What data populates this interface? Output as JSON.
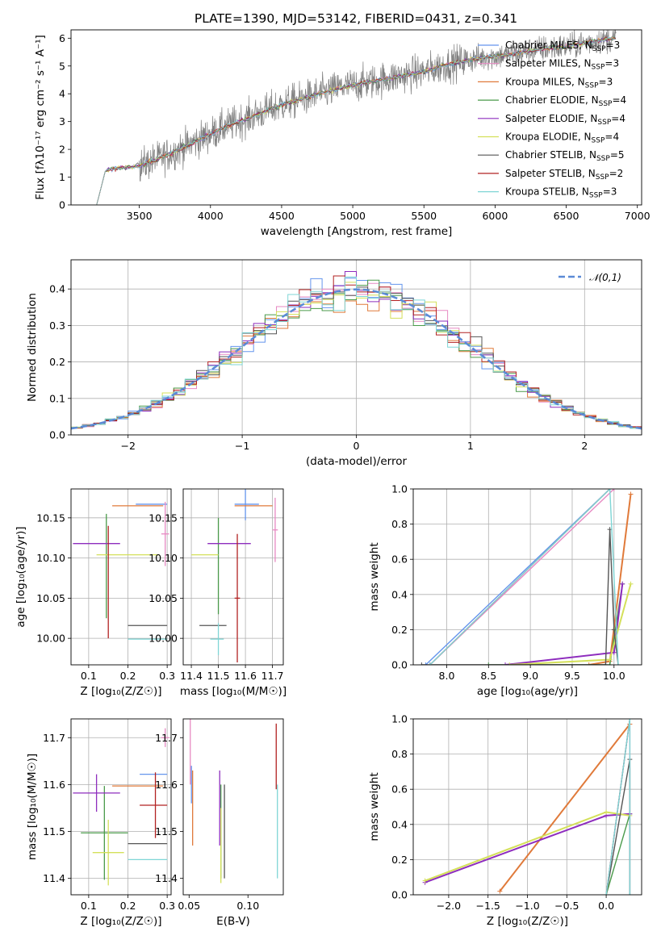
{
  "figure": {
    "title": "PLATE=1390, MJD=53142, FIBERID=0431, z=0.341",
    "series_colors": [
      "#6495ED",
      "#E78AC3",
      "#E07A3A",
      "#4A9A4A",
      "#8E2DBE",
      "#D4E05A",
      "#555555",
      "#B22222",
      "#7FD6D6"
    ]
  },
  "legend_top": [
    {
      "prefix": "Chabrier MILES, N",
      "sub": "SSP",
      "suffix": "=3"
    },
    {
      "prefix": "Salpeter MILES, N",
      "sub": "SSP",
      "suffix": "=3"
    },
    {
      "prefix": "Kroupa MILES, N",
      "sub": "SSP",
      "suffix": "=3"
    },
    {
      "prefix": "Chabrier ELODIE, N",
      "sub": "SSP",
      "suffix": "=4"
    },
    {
      "prefix": "Salpeter ELODIE, N",
      "sub": "SSP",
      "suffix": "=4"
    },
    {
      "prefix": "Kroupa ELODIE, N",
      "sub": "SSP",
      "suffix": "=4"
    },
    {
      "prefix": "Chabrier STELIB, N",
      "sub": "SSP",
      "suffix": "=5"
    },
    {
      "prefix": "Salpeter STELIB, N",
      "sub": "SSP",
      "suffix": "=2"
    },
    {
      "prefix": "Kroupa STELIB, N",
      "sub": "SSP",
      "suffix": "=3"
    }
  ],
  "legend_hist": {
    "label": "𝒩(0,1)"
  },
  "chart_data": [
    {
      "id": "spectrum",
      "type": "line",
      "title": "PLATE=1390, MJD=53142, FIBERID=0431, z=0.341",
      "xlabel": "wavelength [Angstrom, rest frame]",
      "ylabel": "Flux [fλ10⁻¹⁷ erg cm⁻² s⁻¹ A⁻¹]",
      "xlim": [
        3020,
        7030
      ],
      "ylim": [
        0,
        6.3
      ],
      "xticks": [
        3500,
        4000,
        4500,
        5000,
        5500,
        6000,
        6500,
        7000
      ],
      "yticks": [
        0,
        1,
        2,
        3,
        4,
        5,
        6
      ],
      "continuum_x": [
        3200,
        3260,
        3300,
        3500,
        3700,
        3900,
        4100,
        4300,
        4500,
        4700,
        4900,
        5100,
        5300,
        5500,
        5700,
        5900,
        6100,
        6300,
        6500,
        6700,
        6850
      ],
      "continuum_y": [
        0,
        1.2,
        1.3,
        1.4,
        1.8,
        2.3,
        2.8,
        3.2,
        3.6,
        3.9,
        4.2,
        4.4,
        4.6,
        4.8,
        5.1,
        5.3,
        5.4,
        5.6,
        5.7,
        5.9,
        6.0
      ],
      "legend_position": "upper right"
    },
    {
      "id": "residual-hist",
      "type": "line",
      "xlabel": "(data-model)/error",
      "ylabel": "Normed distribution",
      "xlim": [
        -2.5,
        2.5
      ],
      "ylim": [
        0,
        0.48
      ],
      "xticks": [
        -2,
        -1,
        0,
        1,
        2
      ],
      "yticks": [
        0.0,
        0.1,
        0.2,
        0.3,
        0.4
      ],
      "bin_width": 0.1,
      "reference_curve": "standard normal, dashed",
      "grid": true,
      "legend_position": "upper right"
    },
    {
      "id": "age-vs-Z",
      "type": "scatter",
      "xlabel": "Z [log₁₀(Z/Z☉)]",
      "ylabel": "age  [log₁₀(age/yr)]",
      "xlim": [
        0.055,
        0.31
      ],
      "ylim": [
        9.967,
        10.186
      ],
      "xticks": [
        0.1,
        0.2,
        0.3
      ],
      "yticks": [
        10.0,
        10.05,
        10.1,
        10.15
      ],
      "grid": true,
      "points": [
        {
          "x": 0.27,
          "xerr": [
            0.05,
            0.03
          ],
          "y": 10.167,
          "yerr": [
            0,
            0
          ]
        },
        {
          "x": 0.295,
          "xerr": [
            0.01,
            0.01
          ],
          "y": 10.13,
          "yerr": [
            0.04,
            0.04
          ]
        },
        {
          "x": 0.25,
          "xerr": [
            0.09,
            0.04
          ],
          "y": 10.165,
          "yerr": [
            0,
            0
          ]
        },
        {
          "x": 0.145,
          "xerr": [
            0,
            0
          ],
          "y": 10.09,
          "yerr": [
            0.065,
            0.065
          ]
        },
        {
          "x": 0.12,
          "xerr": [
            0.06,
            0.06
          ],
          "y": 10.118,
          "yerr": [
            0,
            0
          ]
        },
        {
          "x": 0.2,
          "xerr": [
            0.08,
            0.08
          ],
          "y": 10.104,
          "yerr": [
            0,
            0
          ]
        },
        {
          "x": 0.25,
          "xerr": [
            0.05,
            0.05
          ],
          "y": 10.016,
          "yerr": [
            0,
            0
          ]
        },
        {
          "x": 0.15,
          "xerr": [
            0,
            0
          ],
          "y": 10.07,
          "yerr": [
            0.07,
            0.07
          ]
        },
        {
          "x": 0.25,
          "xerr": [
            0.05,
            0.05
          ],
          "y": 9.999,
          "yerr": [
            0,
            0
          ]
        }
      ]
    },
    {
      "id": "age-vs-mass",
      "type": "scatter",
      "xlabel": "mass [log₁₀(M/M☉)]",
      "ylabel": "",
      "xlim": [
        11.37,
        11.74
      ],
      "ylim": [
        9.967,
        10.186
      ],
      "xticks": [
        11.4,
        11.5,
        11.6,
        11.7
      ],
      "yticks": [
        10.0,
        10.05,
        10.1,
        10.15
      ],
      "grid": true,
      "points": [
        {
          "x": 11.6,
          "xerr": [
            0.04,
            0.05
          ],
          "y": 10.167,
          "yerr": [
            0.02,
            0.02
          ]
        },
        {
          "x": 11.71,
          "xerr": [
            0.01,
            0.01
          ],
          "y": 10.135,
          "yerr": [
            0.04,
            0.04
          ]
        },
        {
          "x": 11.62,
          "xerr": [
            0.06,
            0.08
          ],
          "y": 10.165,
          "yerr": [
            0,
            0
          ]
        },
        {
          "x": 11.5,
          "xerr": [
            0,
            0
          ],
          "y": 10.09,
          "yerr": [
            0.06,
            0.06
          ]
        },
        {
          "x": 11.55,
          "xerr": [
            0.09,
            0.07
          ],
          "y": 10.118,
          "yerr": [
            0,
            0
          ]
        },
        {
          "x": 11.45,
          "xerr": [
            0.05,
            0.05
          ],
          "y": 10.104,
          "yerr": [
            0,
            0
          ]
        },
        {
          "x": 11.48,
          "xerr": [
            0.05,
            0.05
          ],
          "y": 10.016,
          "yerr": [
            0,
            0
          ]
        },
        {
          "x": 11.57,
          "xerr": [
            0.01,
            0.01
          ],
          "y": 10.05,
          "yerr": [
            0.08,
            0.08
          ]
        },
        {
          "x": 11.5,
          "xerr": [
            0.03,
            0.02
          ],
          "y": 9.999,
          "yerr": [
            0.02,
            0.02
          ]
        }
      ]
    },
    {
      "id": "weight-vs-age",
      "type": "line",
      "xlabel": "age  [log₁₀(age/yr)]",
      "ylabel": "mass weight",
      "xlim": [
        7.6,
        10.33
      ],
      "ylim": [
        0,
        1
      ],
      "xticks": [
        8.0,
        8.5,
        9.0,
        9.5,
        10.0
      ],
      "yticks": [
        0.0,
        0.2,
        0.4,
        0.6,
        0.8,
        1.0
      ],
      "grid": true,
      "series": [
        {
          "x": [
            7.75,
            9.95
          ],
          "y": [
            0.0,
            1.0
          ]
        },
        {
          "x": [
            7.8,
            10.0
          ],
          "y": [
            0.0,
            1.0
          ]
        },
        {
          "x": [
            9.7,
            9.95,
            10.2
          ],
          "y": [
            0.0,
            0.02,
            0.97
          ]
        },
        {
          "x": [
            8.5,
            9.95,
            10.1
          ],
          "y": [
            0.0,
            0.0,
            0.46
          ]
        },
        {
          "x": [
            8.7,
            10.0,
            10.1
          ],
          "y": [
            0.0,
            0.07,
            0.46
          ]
        },
        {
          "x": [
            8.75,
            9.95,
            10.2
          ],
          "y": [
            0.0,
            0.03,
            0.46
          ]
        },
        {
          "x": [
            7.7,
            9.9,
            9.95,
            10.0,
            10.05
          ],
          "y": [
            0.0,
            0.0,
            0.77,
            0.2,
            0.0
          ]
        },
        {
          "x": [
            7.8,
            9.95
          ],
          "y": [
            0.0,
            1.0
          ]
        },
        {
          "x": [
            7.8,
            9.95,
            10.05
          ],
          "y": [
            0.0,
            1.0,
            0.0
          ]
        }
      ]
    },
    {
      "id": "mass-vs-Z",
      "type": "scatter",
      "xlabel": "Z [log₁₀(Z/Z☉)]",
      "ylabel": "mass [log₁₀(M/M☉)]",
      "xlim": [
        0.055,
        0.31
      ],
      "ylim": [
        11.365,
        11.74
      ],
      "xticks": [
        0.1,
        0.2,
        0.3
      ],
      "yticks": [
        11.4,
        11.5,
        11.6,
        11.7
      ],
      "grid": true,
      "points": [
        {
          "x": 0.27,
          "xerr": [
            0.04,
            0.03
          ],
          "y": 11.622,
          "yerr": [
            0,
            0
          ]
        },
        {
          "x": 0.295,
          "xerr": [
            0.01,
            0.01
          ],
          "y": 11.7,
          "yerr": [
            0.02,
            0.02
          ]
        },
        {
          "x": 0.25,
          "xerr": [
            0.09,
            0.04
          ],
          "y": 11.597,
          "yerr": [
            0,
            0
          ]
        },
        {
          "x": 0.14,
          "xerr": [
            0.06,
            0.06
          ],
          "y": 11.497,
          "yerr": [
            0.1,
            0.1
          ]
        },
        {
          "x": 0.12,
          "xerr": [
            0.06,
            0.06
          ],
          "y": 11.582,
          "yerr": [
            0.04,
            0.04
          ]
        },
        {
          "x": 0.15,
          "xerr": [
            0.04,
            0.04
          ],
          "y": 11.455,
          "yerr": [
            0.07,
            0.07
          ]
        },
        {
          "x": 0.25,
          "xerr": [
            0.05,
            0.05
          ],
          "y": 11.474,
          "yerr": [
            0,
            0
          ]
        },
        {
          "x": 0.27,
          "xerr": [
            0.04,
            0.03
          ],
          "y": 11.556,
          "yerr": [
            0.07,
            0.07
          ]
        },
        {
          "x": 0.25,
          "xerr": [
            0.05,
            0.05
          ],
          "y": 11.44,
          "yerr": [
            0,
            0
          ]
        }
      ]
    },
    {
      "id": "mass-vs-ebv",
      "type": "scatter",
      "xlabel": "E(B-V)",
      "ylabel": "",
      "xlim": [
        0.045,
        0.13
      ],
      "ylim": [
        11.365,
        11.74
      ],
      "xticks": [
        0.05,
        0.1
      ],
      "yticks": [
        11.4,
        11.5,
        11.6,
        11.7
      ],
      "grid": false,
      "points": [
        {
          "x": 0.052,
          "xerr": [
            0,
            0
          ],
          "y": 11.6,
          "yerr": [
            0.04,
            0.04
          ]
        },
        {
          "x": 0.051,
          "xerr": [
            0,
            0
          ],
          "y": 11.67,
          "yerr": [
            0.07,
            0.07
          ]
        },
        {
          "x": 0.053,
          "xerr": [
            0,
            0
          ],
          "y": 11.55,
          "yerr": [
            0.08,
            0.08
          ]
        },
        {
          "x": 0.077,
          "xerr": [
            0,
            0
          ],
          "y": 11.5,
          "yerr": [
            0.1,
            0.1
          ]
        },
        {
          "x": 0.076,
          "xerr": [
            0,
            0
          ],
          "y": 11.55,
          "yerr": [
            0.08,
            0.08
          ]
        },
        {
          "x": 0.077,
          "xerr": [
            0,
            0
          ],
          "y": 11.47,
          "yerr": [
            0.08,
            0.08
          ]
        },
        {
          "x": 0.08,
          "xerr": [
            0,
            0
          ],
          "y": 11.5,
          "yerr": [
            0.1,
            0.1
          ]
        },
        {
          "x": 0.124,
          "xerr": [
            0,
            0
          ],
          "y": 11.66,
          "yerr": [
            0.07,
            0.07
          ]
        },
        {
          "x": 0.125,
          "xerr": [
            0,
            0
          ],
          "y": 11.5,
          "yerr": [
            0.1,
            0.1
          ]
        }
      ]
    },
    {
      "id": "weight-vs-Z",
      "type": "line",
      "xlabel": "Z [log₁₀(Z/Z☉)]",
      "ylabel": "mass weight",
      "xlim": [
        -2.45,
        0.45
      ],
      "ylim": [
        0,
        1
      ],
      "xticks": [
        -2.0,
        -1.5,
        -1.0,
        -0.5,
        0.0
      ],
      "yticks": [
        0.0,
        0.2,
        0.4,
        0.6,
        0.8,
        1.0
      ],
      "grid": true,
      "series": [
        {
          "x": [
            0.0,
            0.3
          ],
          "y": [
            0.0,
            1.0
          ]
        },
        {
          "x": [
            0.3,
            0.3
          ],
          "y": [
            0.0,
            0.97
          ]
        },
        {
          "x": [
            -1.35,
            0.3
          ],
          "y": [
            0.02,
            0.97
          ]
        },
        {
          "x": [
            0.0,
            0.3
          ],
          "y": [
            0.0,
            0.46
          ]
        },
        {
          "x": [
            -2.3,
            0.0,
            0.3
          ],
          "y": [
            0.07,
            0.45,
            0.46
          ]
        },
        {
          "x": [
            -2.3,
            0.0,
            0.3
          ],
          "y": [
            0.08,
            0.47,
            0.45
          ]
        },
        {
          "x": [
            0.0,
            0.3,
            0.3
          ],
          "y": [
            0.0,
            0.77,
            0.0
          ]
        },
        {
          "x": [
            0.0,
            0.3
          ],
          "y": [
            0.0,
            1.0
          ]
        },
        {
          "x": [
            0.0,
            0.3,
            0.3
          ],
          "y": [
            0.0,
            1.0,
            0.0
          ]
        }
      ]
    }
  ]
}
